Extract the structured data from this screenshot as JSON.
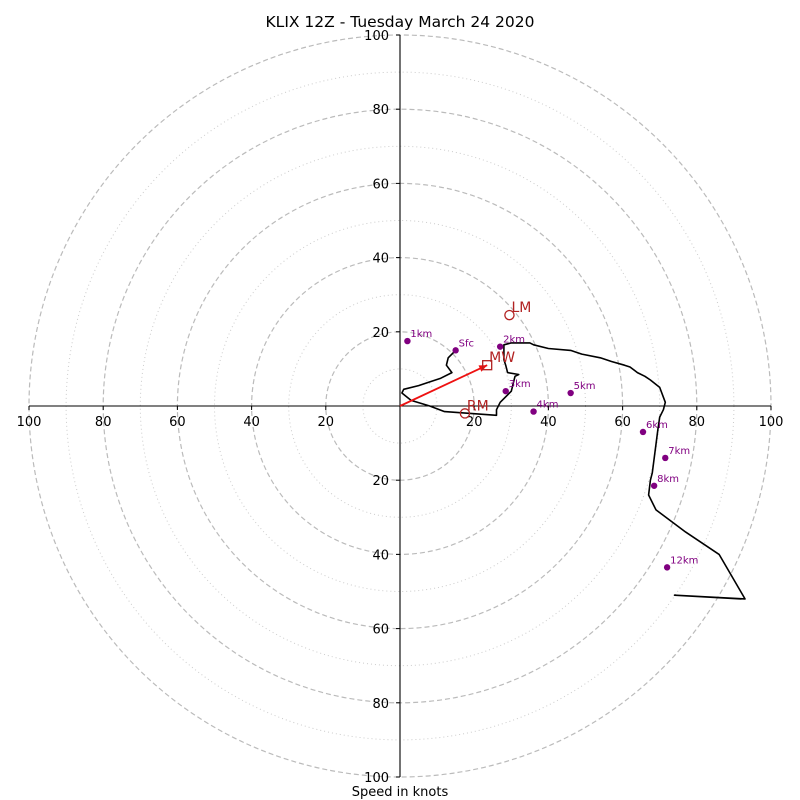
{
  "chart_data": {
    "type": "line",
    "title": "KLIX 12Z - Tuesday March 24 2020",
    "xlabel": "Speed in knots",
    "ylabel": "",
    "range": [
      -100,
      100
    ],
    "tick_labels": [
      "100",
      "80",
      "60",
      "40",
      "20",
      "20",
      "40",
      "60",
      "80",
      "100"
    ],
    "tick_values": [
      -100,
      -80,
      -60,
      -40,
      -20,
      20,
      40,
      60,
      80,
      100
    ],
    "rings_major": [
      20,
      40,
      60,
      80,
      100
    ],
    "rings_minor": [
      10,
      30,
      50,
      70,
      90
    ],
    "grid": true,
    "colors": {
      "trace": "#000000",
      "heights": "#800080",
      "motion": "#b22222",
      "arrow": "#ee1111",
      "grid": "#bbbbbb"
    },
    "hodograph": {
      "u": [
        15,
        13,
        12.5,
        14,
        11,
        5,
        1,
        0.5,
        3,
        8,
        12,
        26,
        26,
        27,
        30,
        31,
        32,
        29,
        28.5,
        28,
        28,
        30,
        35,
        36,
        40,
        46,
        47.5,
        49,
        54,
        57,
        60.5,
        62,
        64,
        66,
        67.5,
        70,
        71.5,
        71,
        70,
        69.5,
        68,
        67.5,
        67,
        69,
        77,
        86,
        93,
        74,
        92
      ],
      "v": [
        15,
        13,
        11,
        9,
        7.5,
        5.5,
        4.5,
        3.5,
        1.5,
        0,
        -1.5,
        -2.5,
        -1,
        1,
        4,
        8,
        8.5,
        9,
        11,
        12.5,
        16.5,
        17,
        17,
        16.5,
        15.5,
        15,
        14.5,
        14,
        13,
        12,
        11,
        10.5,
        9,
        8,
        7,
        5,
        1,
        -1,
        -3,
        -6.5,
        -18,
        -20,
        -24,
        -28,
        -34,
        -40,
        -52,
        -51,
        -52
      ]
    },
    "heights": [
      {
        "label": "Sfc",
        "u": 15,
        "v": 15
      },
      {
        "label": "1km",
        "u": 2,
        "v": 17.5
      },
      {
        "label": "2km",
        "u": 27,
        "v": 16
      },
      {
        "label": "3km",
        "u": 28.5,
        "v": 4
      },
      {
        "label": "4km",
        "u": 36,
        "v": -1.5
      },
      {
        "label": "5km",
        "u": 46,
        "v": 3.5
      },
      {
        "label": "6km",
        "u": 65.5,
        "v": -7
      },
      {
        "label": "7km",
        "u": 71.5,
        "v": -14
      },
      {
        "label": "8km",
        "u": 68.5,
        "v": -21.5
      },
      {
        "label": "12km",
        "u": 72,
        "v": -43.5
      }
    ],
    "storm_motion": [
      {
        "label": "LM",
        "u": 29.5,
        "v": 24.5,
        "marker": "circle"
      },
      {
        "label": "MW",
        "u": 23.5,
        "v": 11,
        "marker": "square"
      },
      {
        "label": "RM",
        "u": 17.5,
        "v": -2,
        "marker": "circle"
      }
    ],
    "mean_wind_arrow": {
      "u": 23.5,
      "v": 11
    }
  }
}
